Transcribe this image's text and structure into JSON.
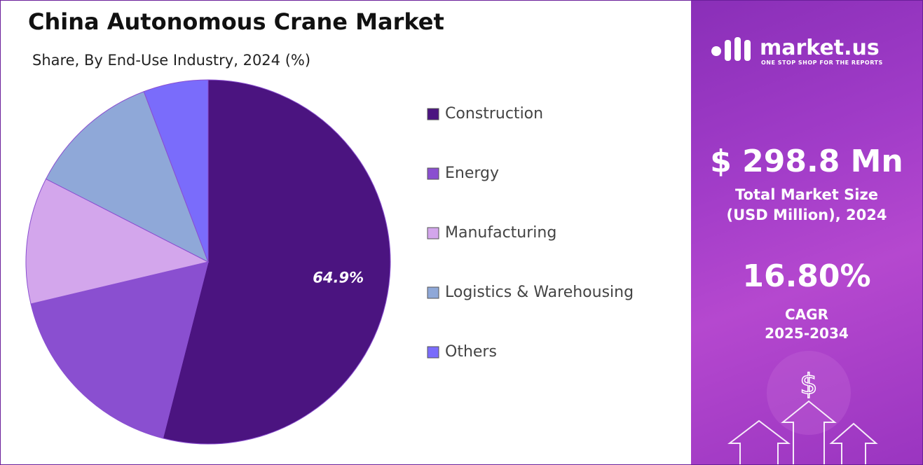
{
  "chart_data": {
    "type": "pie",
    "title": "China Autonomous Crane Market",
    "subtitle": "Share, By End-Use Industry, 2024 (%)",
    "categories": [
      "Construction",
      "Energy",
      "Manufacturing",
      "Logistics & Warehousing",
      "Others"
    ],
    "values": [
      64.9,
      20.8,
      13.5,
      14.1,
      6.9
    ],
    "value_labels": [
      "64.9%",
      null,
      null,
      null,
      null
    ],
    "colors": [
      "#4b1480",
      "#8a4fd0",
      "#d3a6ec",
      "#8fa8d8",
      "#7a6cfb"
    ],
    "legend": "right"
  },
  "side_panel": {
    "brand": "market.us",
    "tagline": "ONE STOP SHOP FOR THE REPORTS",
    "market_size": "$ 298.8 Mn",
    "market_size_label": "Total Market Size",
    "market_size_sub": "(USD Million), 2024",
    "cagr": "16.80%",
    "cagr_label": "CAGR",
    "cagr_period": "2025-2034"
  }
}
